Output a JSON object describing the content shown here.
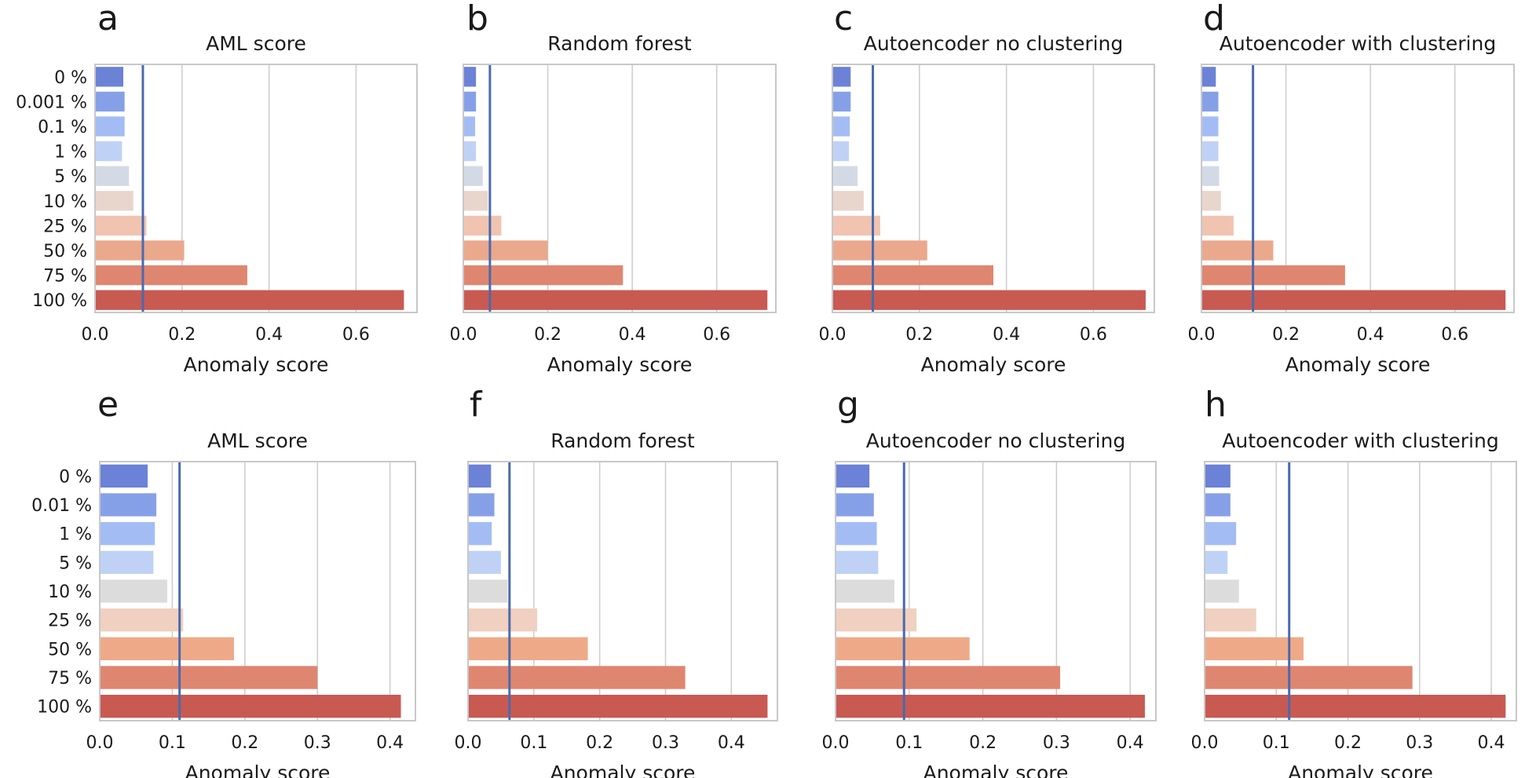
{
  "colors": {
    "grid": "#cccccc",
    "frame": "#c8c8c8",
    "threshold": "#4a6aad"
  },
  "chart_data": [
    {
      "type": "bar",
      "orientation": "horizontal",
      "panel": "a",
      "title": "AML score",
      "xlabel": "Anomaly score",
      "xlim": [
        0,
        0.74
      ],
      "xticks": [
        0.0,
        0.2,
        0.4,
        0.6
      ],
      "tick_format": 1,
      "threshold": 0.11,
      "categories": [
        "0 %",
        "0.001 %",
        "0.1 %",
        "1 %",
        "5 %",
        "10 %",
        "25 %",
        "50 %",
        "75 %",
        "100 %"
      ],
      "values": [
        0.065,
        0.068,
        0.068,
        0.062,
        0.078,
        0.088,
        0.118,
        0.205,
        0.35,
        0.71
      ],
      "bar_colors": [
        "#6b82d6",
        "#86a0e8",
        "#a3bdf4",
        "#bfd2f6",
        "#d3dae5",
        "#e8d5cc",
        "#f0c4b0",
        "#eaa88c",
        "#df8670",
        "#c85a52"
      ]
    },
    {
      "type": "bar",
      "orientation": "horizontal",
      "panel": "b",
      "title": "Random forest",
      "xlabel": "Anomaly score",
      "xlim": [
        0,
        0.74
      ],
      "xticks": [
        0.0,
        0.2,
        0.4,
        0.6
      ],
      "tick_format": 1,
      "threshold": 0.063,
      "categories": [
        "0 %",
        "0.001 %",
        "0.1 %",
        "1 %",
        "5 %",
        "10 %",
        "25 %",
        "50 %",
        "75 %",
        "100 %"
      ],
      "values": [
        0.03,
        0.03,
        0.028,
        0.03,
        0.046,
        0.058,
        0.09,
        0.2,
        0.378,
        0.72
      ],
      "bar_colors": [
        "#6b82d6",
        "#86a0e8",
        "#a3bdf4",
        "#bfd2f6",
        "#d3dae5",
        "#e8d5cc",
        "#f0c4b0",
        "#eaa88c",
        "#df8670",
        "#c85a52"
      ]
    },
    {
      "type": "bar",
      "orientation": "horizontal",
      "panel": "c",
      "title": "Autoencoder no clustering",
      "xlabel": "Anomaly score",
      "xlim": [
        0,
        0.74
      ],
      "xticks": [
        0.0,
        0.2,
        0.4,
        0.6
      ],
      "tick_format": 1,
      "threshold": 0.093,
      "categories": [
        "0 %",
        "0.001 %",
        "0.1 %",
        "1 %",
        "5 %",
        "10 %",
        "25 %",
        "50 %",
        "75 %",
        "100 %"
      ],
      "values": [
        0.042,
        0.042,
        0.04,
        0.038,
        0.058,
        0.072,
        0.11,
        0.218,
        0.37,
        0.72
      ],
      "bar_colors": [
        "#6b82d6",
        "#86a0e8",
        "#a3bdf4",
        "#bfd2f6",
        "#d3dae5",
        "#e8d5cc",
        "#f0c4b0",
        "#eaa88c",
        "#df8670",
        "#c85a52"
      ]
    },
    {
      "type": "bar",
      "orientation": "horizontal",
      "panel": "d",
      "title": "Autoencoder with clustering",
      "xlabel": "Anomaly score",
      "xlim": [
        0,
        0.74
      ],
      "xticks": [
        0.0,
        0.2,
        0.4,
        0.6
      ],
      "tick_format": 1,
      "threshold": 0.122,
      "categories": [
        "0 %",
        "0.001 %",
        "0.1 %",
        "1 %",
        "5 %",
        "10 %",
        "25 %",
        "50 %",
        "75 %",
        "100 %"
      ],
      "values": [
        0.034,
        0.04,
        0.04,
        0.04,
        0.042,
        0.046,
        0.076,
        0.17,
        0.34,
        0.72
      ],
      "bar_colors": [
        "#6b82d6",
        "#86a0e8",
        "#a3bdf4",
        "#bfd2f6",
        "#d3dae5",
        "#e8d5cc",
        "#f0c4b0",
        "#eaa88c",
        "#df8670",
        "#c85a52"
      ]
    },
    {
      "type": "bar",
      "orientation": "horizontal",
      "panel": "e",
      "title": "AML score",
      "xlabel": "Anomaly score",
      "xlim": [
        0,
        0.435
      ],
      "xticks": [
        0.0,
        0.1,
        0.2,
        0.3,
        0.4
      ],
      "tick_format": 1,
      "threshold": 0.11,
      "categories": [
        "0 %",
        "0.01 %",
        "1 %",
        "5 %",
        "10 %",
        "25 %",
        "50 %",
        "75 %",
        "100 %"
      ],
      "values": [
        0.066,
        0.078,
        0.076,
        0.074,
        0.093,
        0.115,
        0.185,
        0.3,
        0.415
      ],
      "bar_colors": [
        "#6b82d6",
        "#86a0e8",
        "#a3bdf4",
        "#bfd2f6",
        "#dcdcdc",
        "#f0d0c0",
        "#eeaa88",
        "#df8670",
        "#c85a52"
      ]
    },
    {
      "type": "bar",
      "orientation": "horizontal",
      "panel": "f",
      "title": "Random forest",
      "xlabel": "Anomaly score",
      "xlim": [
        0,
        0.47
      ],
      "xticks": [
        0.0,
        0.1,
        0.2,
        0.3,
        0.4
      ],
      "tick_format": 1,
      "threshold": 0.063,
      "categories": [
        "0 %",
        "0.01 %",
        "1 %",
        "5 %",
        "10 %",
        "25 %",
        "50 %",
        "75 %",
        "100 %"
      ],
      "values": [
        0.035,
        0.04,
        0.036,
        0.05,
        0.06,
        0.105,
        0.182,
        0.33,
        0.455
      ],
      "bar_colors": [
        "#6b82d6",
        "#86a0e8",
        "#a3bdf4",
        "#bfd2f6",
        "#dcdcdc",
        "#f0d0c0",
        "#eeaa88",
        "#df8670",
        "#c85a52"
      ]
    },
    {
      "type": "bar",
      "orientation": "horizontal",
      "panel": "g",
      "title": "Autoencoder no clustering",
      "xlabel": "Anomaly score",
      "xlim": [
        0,
        0.435
      ],
      "xticks": [
        0.0,
        0.1,
        0.2,
        0.3,
        0.4
      ],
      "tick_format": 1,
      "threshold": 0.093,
      "categories": [
        "0 %",
        "0.01 %",
        "1 %",
        "5 %",
        "10 %",
        "25 %",
        "50 %",
        "75 %",
        "100 %"
      ],
      "values": [
        0.046,
        0.052,
        0.056,
        0.058,
        0.08,
        0.11,
        0.182,
        0.305,
        0.42
      ],
      "bar_colors": [
        "#6b82d6",
        "#86a0e8",
        "#a3bdf4",
        "#bfd2f6",
        "#dcdcdc",
        "#f0d0c0",
        "#eeaa88",
        "#df8670",
        "#c85a52"
      ]
    },
    {
      "type": "bar",
      "orientation": "horizontal",
      "panel": "h",
      "title": "Autoencoder with clustering",
      "xlabel": "Anomaly score",
      "xlim": [
        0,
        0.435
      ],
      "xticks": [
        0.0,
        0.1,
        0.2,
        0.3,
        0.4
      ],
      "tick_format": 1,
      "threshold": 0.118,
      "categories": [
        "0 %",
        "0.01 %",
        "1 %",
        "5 %",
        "10 %",
        "25 %",
        "50 %",
        "75 %",
        "100 %"
      ],
      "values": [
        0.036,
        0.036,
        0.044,
        0.032,
        0.048,
        0.072,
        0.138,
        0.29,
        0.42
      ],
      "bar_colors": [
        "#6b82d6",
        "#86a0e8",
        "#a3bdf4",
        "#bfd2f6",
        "#dcdcdc",
        "#f0d0c0",
        "#eeaa88",
        "#df8670",
        "#c85a52"
      ]
    }
  ]
}
